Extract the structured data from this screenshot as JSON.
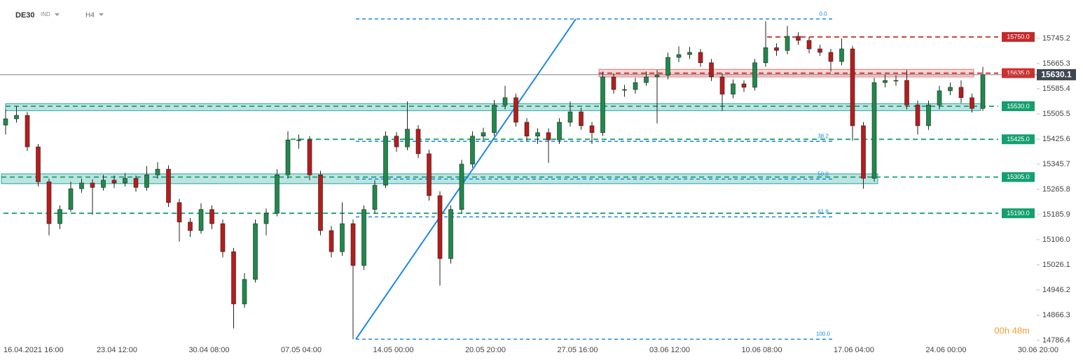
{
  "header": {
    "symbol": "DE30",
    "market": "IND",
    "timeframe": "H4"
  },
  "timer": "00h 48m",
  "chart_data": {
    "type": "candlestick",
    "up_color": "#1e8a4c",
    "down_color": "#b71c1c",
    "open": [
      15470,
      15490,
      15501,
      15401,
      15290,
      15157,
      15202,
      15268,
      15286,
      15272,
      15295,
      15286,
      15301,
      15272,
      15312,
      15330,
      15224,
      15162,
      15135,
      15202,
      15157,
      15068,
      14902,
      14980,
      15157,
      15190,
      15312,
      15423,
      15423,
      15312,
      15135,
      15068,
      15157,
      15024,
      15202,
      15279,
      15435,
      15401,
      15457,
      15379,
      15246,
      15046,
      15202,
      15346,
      15435,
      15446,
      15534,
      15557,
      15479,
      15435,
      15446,
      15423,
      15479,
      15512,
      15468,
      15446,
      15623,
      15583,
      15583,
      15605,
      15623,
      15628,
      15685,
      15694,
      15701,
      15668,
      15623,
      15568,
      15601,
      15590,
      15668,
      15716,
      15707,
      15752,
      15739,
      15712,
      15701,
      15672,
      15712,
      15468,
      15301,
      15605,
      15612,
      15612,
      15534,
      15468,
      15534,
      15579,
      15590,
      15557,
      15523
    ],
    "high": [
      15520,
      15530,
      15512,
      15410,
      15300,
      15215,
      15290,
      15300,
      15298,
      15312,
      15310,
      15318,
      15310,
      15340,
      15352,
      15342,
      15236,
      15175,
      15222,
      15215,
      15170,
      15080,
      15000,
      15170,
      15205,
      15330,
      15450,
      15440,
      15435,
      15325,
      15150,
      15225,
      15170,
      15215,
      15295,
      15450,
      15448,
      15545,
      15470,
      15392,
      15260,
      15215,
      15360,
      15450,
      15462,
      15550,
      15595,
      15570,
      15492,
      15460,
      15460,
      15492,
      15545,
      15525,
      15480,
      15640,
      15635,
      15598,
      15620,
      15640,
      15645,
      15700,
      15720,
      15718,
      15712,
      15680,
      15635,
      15615,
      15612,
      15680,
      15800,
      15730,
      15785,
      15765,
      15750,
      15725,
      15712,
      15745,
      15722,
      15480,
      15620,
      15630,
      15628,
      15645,
      15548,
      15548,
      15595,
      15605,
      15612,
      15570,
      15655
    ],
    "low": [
      15440,
      15478,
      15388,
      15275,
      15120,
      15140,
      15195,
      15255,
      15185,
      15262,
      15270,
      15275,
      15258,
      15262,
      15300,
      15210,
      15100,
      15115,
      15125,
      15140,
      15050,
      14824,
      14890,
      14970,
      15120,
      15180,
      15300,
      15395,
      15295,
      15120,
      15050,
      15055,
      14790,
      15010,
      15190,
      15270,
      15385,
      15390,
      15365,
      15230,
      14960,
      15030,
      15190,
      15335,
      15420,
      15435,
      15520,
      15465,
      15420,
      15410,
      15350,
      15410,
      15465,
      15455,
      15410,
      15435,
      15570,
      15560,
      15570,
      15595,
      15475,
      15615,
      15670,
      15680,
      15655,
      15610,
      15515,
      15555,
      15575,
      15580,
      15655,
      15690,
      15695,
      15725,
      15698,
      15690,
      15640,
      15660,
      15420,
      15268,
      15290,
      15590,
      15595,
      15520,
      15440,
      15455,
      15520,
      15565,
      15540,
      15510,
      15515
    ],
    "close": [
      15490,
      15501,
      15401,
      15290,
      15157,
      15202,
      15268,
      15286,
      15272,
      15295,
      15286,
      15301,
      15272,
      15312,
      15330,
      15224,
      15162,
      15135,
      15202,
      15157,
      15068,
      14902,
      14980,
      15157,
      15190,
      15312,
      15423,
      15423,
      15312,
      15135,
      15068,
      15157,
      15024,
      15202,
      15279,
      15435,
      15401,
      15457,
      15379,
      15246,
      15046,
      15202,
      15346,
      15435,
      15446,
      15534,
      15557,
      15479,
      15435,
      15446,
      15423,
      15479,
      15512,
      15468,
      15446,
      15623,
      15583,
      15583,
      15605,
      15623,
      15628,
      15685,
      15694,
      15701,
      15668,
      15623,
      15568,
      15601,
      15590,
      15668,
      15716,
      15707,
      15752,
      15739,
      15712,
      15701,
      15672,
      15712,
      15468,
      15301,
      15605,
      15612,
      15612,
      15534,
      15468,
      15534,
      15579,
      15590,
      15557,
      15523,
      15630.1
    ],
    "x_labels": [
      "16.04.2021  16:00",
      "23.04  12:00",
      "30.04  08:00",
      "07.05  04:00",
      "14.05  00:00",
      "20.05  20:00",
      "27.05  16:00",
      "03.06  12:00",
      "10.06  08:00",
      "17.06  04:00",
      "24.06  00:00",
      "30.06  20:00"
    ],
    "ylim": [
      14779.8,
      15867.3
    ],
    "yticks": [
      15745.2,
      15665.3,
      15585.4,
      15505.5,
      15425.6,
      15345.7,
      15265.8,
      15185.9,
      {
        "value": 15106.0,
        "label": "15106.0"
      },
      15026.1,
      14946.2,
      14866.3,
      14786.4
    ],
    "current_price": 15630.1,
    "current_color": "#3e474f",
    "levels": [
      {
        "value": {
          "value": 15750.0,
          "label": "15750.0"
        },
        "color": "#c62828"
      },
      {
        "value": {
          "value": 15635.0,
          "label": "15635.0"
        },
        "color": "#d32f2f"
      },
      {
        "value": {
          "value": 15530.0,
          "label": "15530.0"
        },
        "color": "#14a06e"
      },
      {
        "value": {
          "value": 15425.0,
          "label": "15425.0"
        },
        "color": "#14a06e"
      },
      {
        "value": {
          "value": 15305.0,
          "label": "15305.0"
        },
        "color": "#14a06e"
      },
      {
        "value": {
          "value": 15190.0,
          "label": "15190.0"
        },
        "color": "#14a06e"
      }
    ],
    "zones": [
      {
        "low": 15623,
        "high": 15647,
        "color": "#e57373"
      },
      {
        "low": 15516,
        "high": 15538,
        "color": "#26a69a"
      },
      {
        "low": 15284,
        "high": 15315,
        "color": "#26a69a"
      }
    ],
    "fib": {
      "high": 15807,
      "low": 14790,
      "color": "#1e88e5",
      "levels": [
        {
          "value": 0,
          "label": "0.0"
        },
        38.2,
        {
          "value": 50,
          "label": "50.0"
        },
        61.8,
        {
          "value": 100,
          "label": "100.0"
        }
      ]
    }
  }
}
